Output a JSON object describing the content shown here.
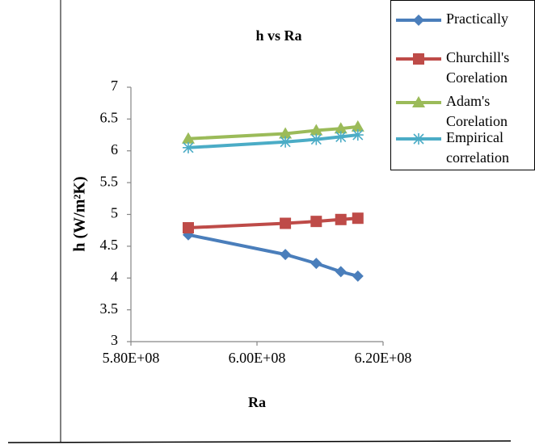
{
  "chart_data": {
    "type": "line",
    "title": "h vs Ra",
    "x_label": "Ra",
    "y_label": "h (W/m²K)",
    "xlim": [
      580000000,
      620000000
    ],
    "xticks": [
      {
        "value": 580000000,
        "label": "5.80E+08"
      },
      {
        "value": 600000000,
        "label": "6.00E+08"
      },
      {
        "value": 620000000,
        "label": "6.20E+08"
      }
    ],
    "ylim": [
      3,
      7
    ],
    "yticks": [
      3,
      3.5,
      4,
      4.5,
      5,
      5.5,
      6,
      6.5,
      7
    ],
    "x": [
      589100000,
      604500000,
      609400000,
      613300000,
      616000000
    ],
    "series": [
      {
        "name": "Practically",
        "color": "#4a7ebb",
        "marker": "diamond",
        "values": [
          4.68,
          4.37,
          4.23,
          4.1,
          4.03
        ]
      },
      {
        "name": "Churchill's Corelation",
        "color": "#be4b48",
        "marker": "square",
        "values": [
          4.79,
          4.86,
          4.89,
          4.92,
          4.94
        ]
      },
      {
        "name": "Adam's Corelation",
        "color": "#9bbb59",
        "marker": "triangle",
        "values": [
          6.19,
          6.27,
          6.32,
          6.35,
          6.38
        ]
      },
      {
        "name": "Empirical correlation",
        "color": "#4bacc6",
        "marker": "asterisk",
        "values": [
          6.05,
          6.14,
          6.18,
          6.22,
          6.25
        ]
      }
    ],
    "grid": false,
    "legend": "top-right"
  }
}
